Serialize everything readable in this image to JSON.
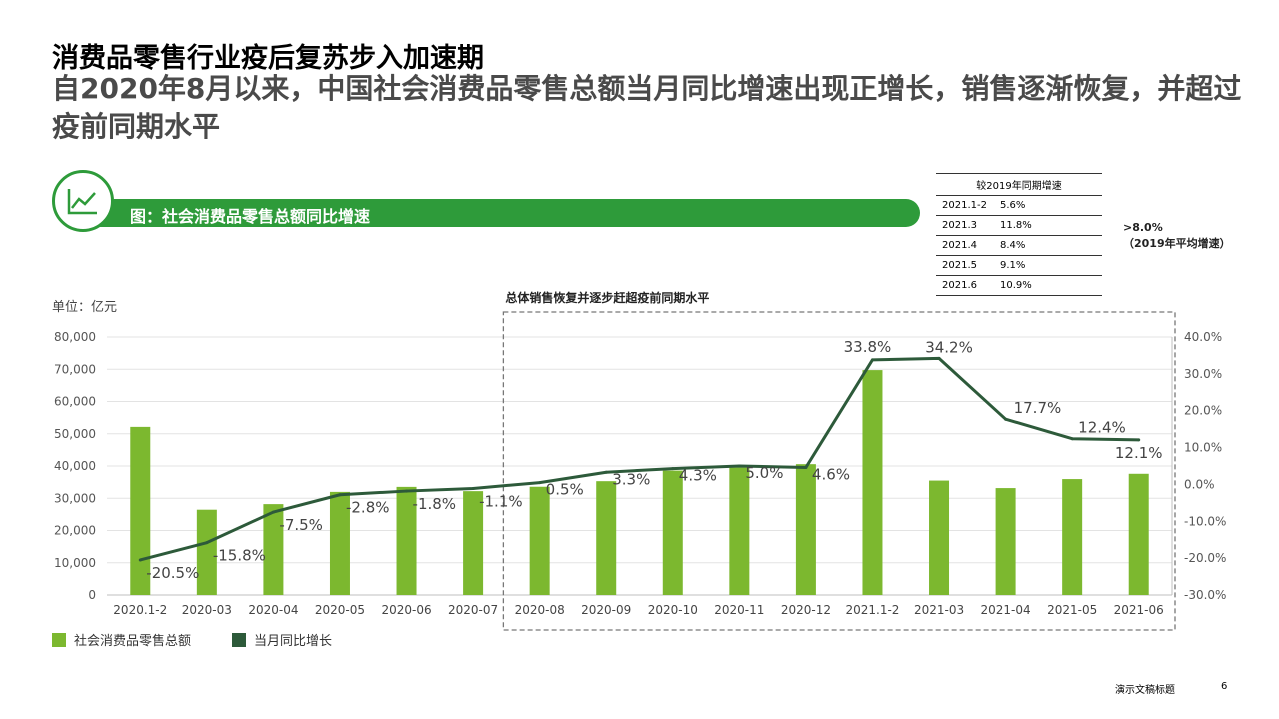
{
  "slide": {
    "title": "消费品零售行业疫后复苏步入加速期",
    "subtitle": "自2020年8月以来，中国社会消费品零售总额当月同比增速出现正增长，销售逐渐恢复，并超过疫前同期水平",
    "footer_title": "演示文稿标题",
    "page_number": "6",
    "accent_color": "#2e9b3a"
  },
  "banner": {
    "label": "图：社会消费品零售总额同比增速",
    "icon": "line-chart-icon"
  },
  "comparison_table": {
    "header": "较2019年同期增速",
    "rows": [
      {
        "period": "2021.1-2",
        "value": "5.6%"
      },
      {
        "period": "2021.3",
        "value": "11.8%"
      },
      {
        "period": "2021.4",
        "value": "8.4%"
      },
      {
        "period": "2021.5",
        "value": "9.1%"
      },
      {
        "period": "2021.6",
        "value": "10.9%"
      }
    ],
    "note_line1": ">8.0%",
    "note_line2": "（2019年平均增速）"
  },
  "chart_data": {
    "type": "bar",
    "title": "",
    "unit_label": "单位：亿元",
    "annotation": "总体销售恢复并逐步赶超疫前同期水平",
    "categories": [
      "2020.1-2",
      "2020-03",
      "2020-04",
      "2020-05",
      "2020-06",
      "2020-07",
      "2020-08",
      "2020-09",
      "2020-10",
      "2020-11",
      "2020-12",
      "2021.1-2",
      "2021-03",
      "2021-04",
      "2021-05",
      "2021-06"
    ],
    "series": [
      {
        "name": "社会消费品零售总额",
        "type": "bar",
        "axis": "left",
        "color": "#7cb82f",
        "values": [
          52130,
          26450,
          28178,
          31973,
          33526,
          32203,
          33571,
          35295,
          38576,
          39514,
          40566,
          69737,
          35484,
          33153,
          35945,
          37586
        ]
      },
      {
        "name": "当月同比增长",
        "type": "line",
        "axis": "right",
        "color": "#2d5a3a",
        "values": [
          -20.5,
          -15.8,
          -7.5,
          -2.8,
          -1.8,
          -1.1,
          0.5,
          3.3,
          4.3,
          5.0,
          4.6,
          33.8,
          34.2,
          17.7,
          12.4,
          12.1
        ],
        "labels": [
          "-20.5%",
          "-15.8%",
          "-7.5%",
          "-2.8%",
          "-1.8%",
          "-1.1%",
          "0.5%",
          "3.3%",
          "4.3%",
          "5.0%",
          "4.6%",
          "33.8%",
          "34.2%",
          "17.7%",
          "12.4%",
          "12.1%"
        ]
      }
    ],
    "left_axis": {
      "min": 0,
      "max": 80000,
      "step": 10000,
      "ticks": [
        "0",
        "10,000",
        "20,000",
        "30,000",
        "40,000",
        "50,000",
        "60,000",
        "70,000",
        "80,000"
      ]
    },
    "right_axis": {
      "min": -30,
      "max": 40,
      "step": 10,
      "ticks": [
        "-30.0%",
        "-20.0%",
        "-10.0%",
        "0.0%",
        "10.0%",
        "20.0%",
        "30.0%",
        "40.0%"
      ]
    },
    "grid": true,
    "legend_position": "bottom-left"
  }
}
